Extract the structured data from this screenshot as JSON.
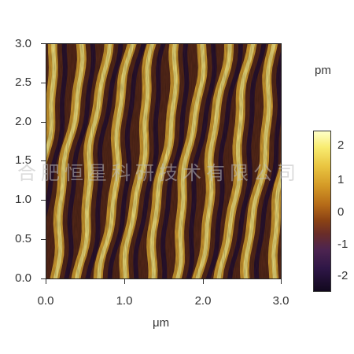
{
  "image": {
    "scan_size_um": 3.0,
    "colormap": [
      "#12081e",
      "#4d2450",
      "#8a4214",
      "#d49a26",
      "#f8ec70",
      "#ffffc8"
    ],
    "x_axis": {
      "label": "μm",
      "ticks": [
        "0.0",
        "1.0",
        "2.0",
        "3.0"
      ]
    },
    "y_axis": {
      "ticks": [
        "0.0",
        "0.5",
        "1.0",
        "1.5",
        "2.0",
        "2.5",
        "3.0"
      ]
    }
  },
  "colorbar": {
    "unit": "pm",
    "ticks": [
      "2",
      "1",
      "0",
      "-1",
      "-2"
    ]
  },
  "watermark": "合肥恒星科研技术有限公司"
}
